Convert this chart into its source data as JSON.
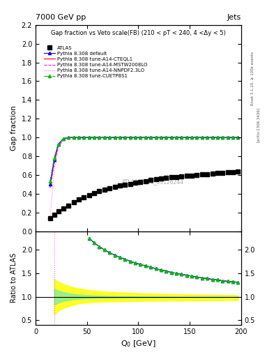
{
  "title_left": "7000 GeV pp",
  "title_right": "Jets",
  "main_title": "Gap fraction vs Veto scale(FB) (210 < pT < 240, 4 <Δy < 5)",
  "xlabel": "Q$_0$ [GeV]",
  "ylabel_main": "Gap fraction",
  "ylabel_ratio": "Ratio to ATLAS",
  "watermark": "ATLAS_2011_S9126244",
  "side_text_top": "Rivet 3.1.10, ≥ 100k events",
  "side_text_bottom": "[arXiv:1306.3436]",
  "xlim": [
    0,
    200
  ],
  "ylim_main": [
    0.0,
    2.2
  ],
  "ylim_ratio": [
    0.4,
    2.4
  ],
  "atlas_x": [
    14,
    18,
    22,
    27,
    32,
    37,
    42,
    47,
    52,
    57,
    62,
    67,
    72,
    77,
    82,
    87,
    92,
    97,
    102,
    107,
    112,
    117,
    122,
    127,
    132,
    137,
    142,
    147,
    152,
    157,
    162,
    167,
    172,
    177,
    182,
    187,
    192,
    197
  ],
  "atlas_y": [
    0.14,
    0.175,
    0.21,
    0.245,
    0.275,
    0.31,
    0.335,
    0.36,
    0.385,
    0.405,
    0.425,
    0.44,
    0.455,
    0.47,
    0.485,
    0.495,
    0.505,
    0.515,
    0.525,
    0.535,
    0.545,
    0.553,
    0.56,
    0.567,
    0.574,
    0.58,
    0.585,
    0.59,
    0.595,
    0.6,
    0.605,
    0.61,
    0.614,
    0.618,
    0.622,
    0.626,
    0.63,
    0.634
  ],
  "atlas_yerr": [
    0.02,
    0.015,
    0.012,
    0.01,
    0.009,
    0.008,
    0.008,
    0.007,
    0.007,
    0.007,
    0.007,
    0.006,
    0.006,
    0.006,
    0.006,
    0.006,
    0.006,
    0.006,
    0.006,
    0.006,
    0.006,
    0.006,
    0.006,
    0.006,
    0.006,
    0.006,
    0.005,
    0.005,
    0.005,
    0.005,
    0.005,
    0.005,
    0.005,
    0.005,
    0.005,
    0.005,
    0.005,
    0.005
  ],
  "pythia_x": [
    14,
    18,
    22,
    27,
    32,
    37,
    42,
    47,
    52,
    57,
    62,
    67,
    72,
    77,
    82,
    87,
    92,
    97,
    102,
    107,
    112,
    117,
    122,
    127,
    132,
    137,
    142,
    147,
    152,
    157,
    162,
    167,
    172,
    177,
    182,
    187,
    192,
    197
  ],
  "pythia_default_y": [
    0.5,
    0.76,
    0.93,
    0.988,
    0.999,
    1.0,
    1.0,
    1.0,
    1.0,
    1.0,
    1.0,
    1.0,
    1.0,
    1.0,
    1.0,
    1.0,
    1.0,
    1.0,
    1.0,
    1.0,
    1.0,
    1.0,
    1.0,
    1.0,
    1.0,
    1.0,
    1.0,
    1.0,
    1.0,
    1.0,
    1.0,
    1.0,
    1.0,
    1.0,
    1.0,
    1.0,
    1.0,
    1.0
  ],
  "pythia_cteq_y": [
    0.48,
    0.74,
    0.92,
    0.986,
    0.999,
    1.0,
    1.0,
    1.0,
    1.0,
    1.0,
    1.0,
    1.0,
    1.0,
    1.0,
    1.0,
    1.0,
    1.0,
    1.0,
    1.0,
    1.0,
    1.0,
    1.0,
    1.0,
    1.0,
    1.0,
    1.0,
    1.0,
    1.0,
    1.0,
    1.0,
    1.0,
    1.0,
    1.0,
    1.0,
    1.0,
    1.0,
    1.0,
    1.0
  ],
  "pythia_mstw_y": [
    0.46,
    0.71,
    0.9,
    0.983,
    0.998,
    1.0,
    1.0,
    1.0,
    1.0,
    1.0,
    1.0,
    1.0,
    1.0,
    1.0,
    1.0,
    1.0,
    1.0,
    1.0,
    1.0,
    1.0,
    1.0,
    1.0,
    1.0,
    1.0,
    1.0,
    1.0,
    1.0,
    1.0,
    1.0,
    1.0,
    1.0,
    1.0,
    1.0,
    1.0,
    1.0,
    1.0,
    1.0,
    1.0
  ],
  "pythia_nnpdf_y": [
    0.12,
    0.62,
    0.88,
    0.976,
    0.996,
    0.999,
    1.0,
    1.0,
    1.0,
    1.0,
    1.0,
    1.0,
    1.0,
    1.0,
    1.0,
    1.0,
    1.0,
    1.0,
    1.0,
    1.0,
    1.0,
    1.0,
    1.0,
    1.0,
    1.0,
    1.0,
    1.0,
    1.0,
    1.0,
    1.0,
    1.0,
    1.0,
    1.0,
    1.0,
    1.0,
    1.0,
    1.0,
    1.0
  ],
  "pythia_cuetp_y": [
    0.53,
    0.78,
    0.93,
    0.988,
    0.999,
    1.0,
    1.0,
    1.0,
    1.0,
    1.0,
    1.0,
    1.0,
    1.0,
    1.0,
    1.0,
    1.0,
    1.0,
    1.0,
    1.0,
    1.0,
    1.0,
    1.0,
    1.0,
    1.0,
    1.0,
    1.0,
    1.0,
    1.0,
    1.0,
    1.0,
    1.0,
    1.0,
    1.0,
    1.0,
    1.0,
    1.0,
    1.0,
    1.0
  ],
  "ratio_x": [
    52,
    57,
    62,
    67,
    72,
    77,
    82,
    87,
    92,
    97,
    102,
    107,
    112,
    117,
    122,
    127,
    132,
    137,
    142,
    147,
    152,
    157,
    162,
    167,
    172,
    177,
    182,
    187,
    192,
    197
  ],
  "ratio_main": [
    2.25,
    2.15,
    2.07,
    2.0,
    1.94,
    1.89,
    1.84,
    1.8,
    1.76,
    1.72,
    1.69,
    1.66,
    1.63,
    1.6,
    1.57,
    1.55,
    1.52,
    1.5,
    1.48,
    1.46,
    1.44,
    1.42,
    1.4,
    1.39,
    1.37,
    1.36,
    1.34,
    1.33,
    1.32,
    1.31
  ],
  "nnpdf_vline_x": 18,
  "error_band_yellow_x": [
    18,
    22,
    27,
    32,
    37,
    42,
    47,
    52,
    57,
    62,
    67,
    72,
    77,
    82,
    87,
    92,
    97,
    102,
    107,
    112,
    117,
    122,
    127,
    132,
    137,
    142,
    147,
    152,
    157,
    162,
    167,
    172,
    177,
    182,
    187,
    192,
    197
  ],
  "error_band_yellow_lo": [
    0.62,
    0.7,
    0.76,
    0.8,
    0.83,
    0.855,
    0.87,
    0.88,
    0.888,
    0.893,
    0.895,
    0.898,
    0.9,
    0.902,
    0.904,
    0.906,
    0.908,
    0.91,
    0.911,
    0.912,
    0.913,
    0.914,
    0.915,
    0.916,
    0.917,
    0.918,
    0.919,
    0.92,
    0.921,
    0.922,
    0.923,
    0.924,
    0.925,
    0.926,
    0.927,
    0.928,
    0.929
  ],
  "error_band_yellow_hi": [
    1.38,
    1.32,
    1.27,
    1.23,
    1.2,
    1.175,
    1.155,
    1.14,
    1.128,
    1.118,
    1.11,
    1.103,
    1.097,
    1.092,
    1.087,
    1.082,
    1.078,
    1.074,
    1.07,
    1.067,
    1.064,
    1.061,
    1.058,
    1.056,
    1.053,
    1.051,
    1.049,
    1.047,
    1.045,
    1.043,
    1.042,
    1.04,
    1.038,
    1.037,
    1.035,
    1.034,
    1.032
  ],
  "error_band_green_x": [
    18,
    22,
    27,
    32,
    37,
    42,
    47,
    52,
    57,
    62,
    67,
    72,
    77,
    82,
    87,
    92,
    97,
    102,
    107,
    112,
    117,
    122,
    127,
    132,
    137,
    142,
    147,
    152,
    157,
    162,
    167,
    172,
    177,
    182,
    187,
    192,
    197
  ],
  "error_band_green_lo": [
    0.83,
    0.87,
    0.905,
    0.93,
    0.945,
    0.955,
    0.962,
    0.968,
    0.972,
    0.975,
    0.977,
    0.979,
    0.98,
    0.981,
    0.982,
    0.983,
    0.984,
    0.985,
    0.986,
    0.987,
    0.987,
    0.988,
    0.988,
    0.989,
    0.989,
    0.99,
    0.99,
    0.991,
    0.991,
    0.991,
    0.992,
    0.992,
    0.992,
    0.993,
    0.993,
    0.993,
    0.994
  ],
  "error_band_green_hi": [
    1.17,
    1.13,
    1.1,
    1.075,
    1.058,
    1.046,
    1.038,
    1.031,
    1.026,
    1.022,
    1.019,
    1.016,
    1.014,
    1.012,
    1.01,
    1.009,
    1.007,
    1.006,
    1.005,
    1.004,
    1.003,
    1.003,
    1.002,
    1.002,
    1.001,
    1.001,
    1.001,
    1.0,
    1.0,
    1.0,
    1.0,
    1.0,
    1.0,
    1.0,
    1.0,
    1.0,
    1.0
  ],
  "yticks_main": [
    0.0,
    0.2,
    0.4,
    0.6,
    0.8,
    1.0,
    1.2,
    1.4,
    1.6,
    1.8,
    2.0,
    2.2
  ],
  "yticks_ratio": [
    0.5,
    1.0,
    1.5,
    2.0
  ],
  "xticks": [
    0,
    50,
    100,
    150,
    200
  ],
  "bg": "#ffffff"
}
